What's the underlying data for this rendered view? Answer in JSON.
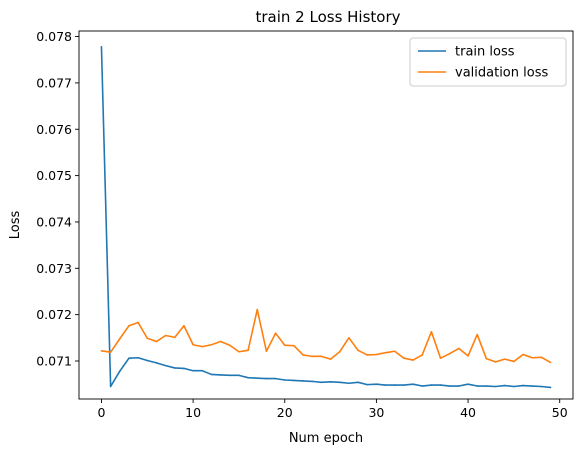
{
  "chart_data": {
    "type": "line",
    "title": "train 2 Loss History",
    "xlabel": "Num epoch",
    "ylabel": "Loss",
    "xlim": [
      -2.45,
      51.45
    ],
    "ylim": [
      0.07018,
      0.07812
    ],
    "xticks": [
      0,
      10,
      20,
      30,
      40,
      50
    ],
    "yticks": [
      0.071,
      0.072,
      0.073,
      0.074,
      0.075,
      0.076,
      0.077,
      0.078
    ],
    "xtick_labels": [
      "0",
      "10",
      "20",
      "30",
      "40",
      "50"
    ],
    "ytick_labels": [
      "0.071",
      "0.072",
      "0.073",
      "0.074",
      "0.075",
      "0.076",
      "0.077",
      "0.078"
    ],
    "grid": false,
    "legend_position": "top-right",
    "x": [
      0,
      1,
      2,
      3,
      4,
      5,
      6,
      7,
      8,
      9,
      10,
      11,
      12,
      13,
      14,
      15,
      16,
      17,
      18,
      19,
      20,
      21,
      22,
      23,
      24,
      25,
      26,
      27,
      28,
      29,
      30,
      31,
      32,
      33,
      34,
      35,
      36,
      37,
      38,
      39,
      40,
      41,
      42,
      43,
      44,
      45,
      46,
      47,
      48,
      49
    ],
    "series": [
      {
        "name": "train loss",
        "color": "#1f77b4",
        "values": [
          0.07778,
          0.07045,
          0.07078,
          0.07106,
          0.07107,
          0.07101,
          0.07096,
          0.0709,
          0.07085,
          0.07084,
          0.07079,
          0.07079,
          0.07071,
          0.0707,
          0.07069,
          0.07069,
          0.07064,
          0.07063,
          0.07062,
          0.07062,
          0.07059,
          0.07058,
          0.07057,
          0.07056,
          0.07054,
          0.07055,
          0.07054,
          0.07052,
          0.07054,
          0.07049,
          0.0705,
          0.07048,
          0.07048,
          0.07048,
          0.0705,
          0.07046,
          0.07048,
          0.07048,
          0.07046,
          0.07046,
          0.0705,
          0.07046,
          0.07046,
          0.07045,
          0.07047,
          0.07045,
          0.07047,
          0.07046,
          0.07045,
          0.07043
        ]
      },
      {
        "name": "validation loss",
        "color": "#ff7f0e",
        "values": [
          0.07122,
          0.07119,
          0.07148,
          0.07176,
          0.07183,
          0.07149,
          0.07142,
          0.07155,
          0.07151,
          0.07176,
          0.07135,
          0.07131,
          0.07135,
          0.07142,
          0.07134,
          0.0712,
          0.07123,
          0.07211,
          0.07121,
          0.0716,
          0.07134,
          0.07133,
          0.07113,
          0.0711,
          0.0711,
          0.07104,
          0.0712,
          0.0715,
          0.07123,
          0.07113,
          0.07114,
          0.07118,
          0.07121,
          0.07106,
          0.07102,
          0.07113,
          0.07163,
          0.07106,
          0.07116,
          0.07127,
          0.07111,
          0.07157,
          0.07105,
          0.07098,
          0.07104,
          0.07099,
          0.07114,
          0.07107,
          0.07108,
          0.07097
        ]
      }
    ]
  }
}
